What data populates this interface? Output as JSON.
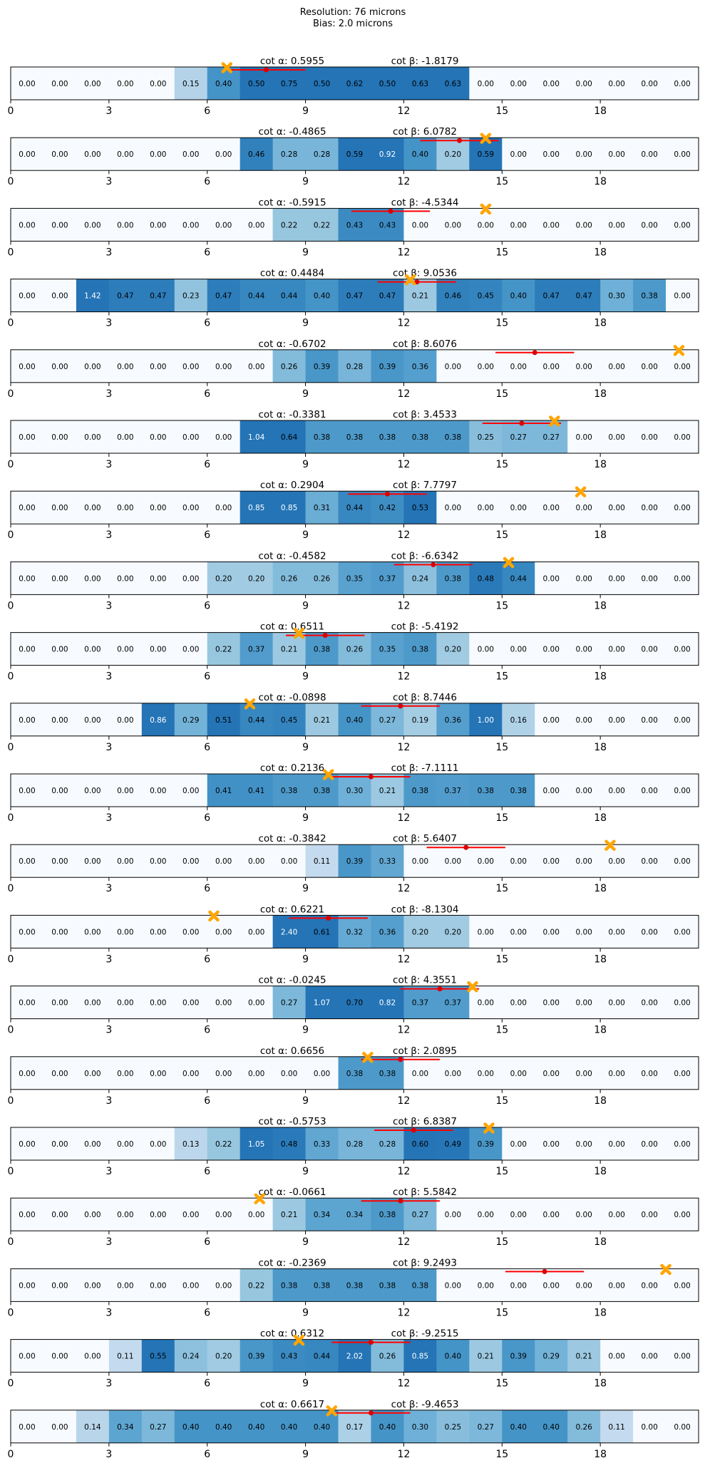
{
  "chart_data": {
    "type": "heatmap",
    "title_lines": [
      "Resolution: 76 microns",
      "Bias: 2.0 microns"
    ],
    "xlim": [
      0,
      21
    ],
    "xticks": [
      0,
      3,
      6,
      9,
      12,
      15,
      18
    ],
    "xtick_labels": [
      "0",
      "3",
      "6",
      "9",
      "12",
      "15",
      "18"
    ],
    "colormap": "Blues",
    "value_range": [
      0,
      1.0
    ],
    "marker_colors": {
      "error_bar": "#ff0000",
      "estimate_point": "#dd0000",
      "true_position": "#ffa500"
    },
    "rows": [
      {
        "cot_alpha": "cot α: 0.5955",
        "cot_beta": "cot β: -1.8179",
        "values": [
          "0.00",
          "0.00",
          "0.00",
          "0.00",
          "0.00",
          "0.15",
          "0.40",
          "0.50",
          "0.75",
          "0.50",
          "0.62",
          "0.50",
          "0.63",
          "0.63",
          "0.00",
          "0.00",
          "0.00",
          "0.00",
          "0.00",
          "0.00",
          "0.00"
        ],
        "estimate": 7.8,
        "error": 1.2,
        "true_pos": 6.6
      },
      {
        "cot_alpha": "cot α: -0.4865",
        "cot_beta": "cot β: 6.0782",
        "values": [
          "0.00",
          "0.00",
          "0.00",
          "0.00",
          "0.00",
          "0.00",
          "0.00",
          "0.46",
          "0.28",
          "0.28",
          "0.59",
          "0.92",
          "0.40",
          "0.20",
          "0.59",
          "0.00",
          "0.00",
          "0.00",
          "0.00",
          "0.00",
          "0.00"
        ],
        "estimate": 13.7,
        "error": 1.2,
        "true_pos": 14.5
      },
      {
        "cot_alpha": "cot α: -0.5915",
        "cot_beta": "cot β: -4.5344",
        "values": [
          "0.00",
          "0.00",
          "0.00",
          "0.00",
          "0.00",
          "0.00",
          "0.00",
          "0.00",
          "0.22",
          "0.22",
          "0.43",
          "0.43",
          "0.00",
          "0.00",
          "0.00",
          "0.00",
          "0.00",
          "0.00",
          "0.00",
          "0.00",
          "0.00"
        ],
        "estimate": 11.6,
        "error": 1.2,
        "true_pos": 14.5
      },
      {
        "cot_alpha": "cot α: 0.4484",
        "cot_beta": "cot β: 9.0536",
        "values": [
          "0.00",
          "0.00",
          "1.42",
          "0.47",
          "0.47",
          "0.23",
          "0.47",
          "0.44",
          "0.44",
          "0.40",
          "0.47",
          "0.47",
          "0.21",
          "0.46",
          "0.45",
          "0.40",
          "0.47",
          "0.47",
          "0.30",
          "0.38",
          "0.00"
        ],
        "estimate": 12.4,
        "error": 1.2,
        "true_pos": 12.2
      },
      {
        "cot_alpha": "cot α: -0.6702",
        "cot_beta": "cot β: 8.6076",
        "values": [
          "0.00",
          "0.00",
          "0.00",
          "0.00",
          "0.00",
          "0.00",
          "0.00",
          "0.00",
          "0.26",
          "0.39",
          "0.28",
          "0.39",
          "0.36",
          "0.00",
          "0.00",
          "0.00",
          "0.00",
          "0.00",
          "0.00",
          "0.00",
          "0.00"
        ],
        "estimate": 16.0,
        "error": 1.2,
        "true_pos": 20.4
      },
      {
        "cot_alpha": "cot α: -0.3381",
        "cot_beta": "cot β: 3.4533",
        "values": [
          "0.00",
          "0.00",
          "0.00",
          "0.00",
          "0.00",
          "0.00",
          "0.00",
          "1.04",
          "0.64",
          "0.38",
          "0.38",
          "0.38",
          "0.38",
          "0.38",
          "0.25",
          "0.27",
          "0.27",
          "0.00",
          "0.00",
          "0.00",
          "0.00"
        ],
        "estimate": 15.6,
        "error": 1.2,
        "true_pos": 16.6
      },
      {
        "cot_alpha": "cot α: 0.2904",
        "cot_beta": "cot β: 7.7797",
        "values": [
          "0.00",
          "0.00",
          "0.00",
          "0.00",
          "0.00",
          "0.00",
          "0.00",
          "0.85",
          "0.85",
          "0.31",
          "0.44",
          "0.42",
          "0.53",
          "0.00",
          "0.00",
          "0.00",
          "0.00",
          "0.00",
          "0.00",
          "0.00",
          "0.00"
        ],
        "estimate": 11.5,
        "error": 1.2,
        "true_pos": 17.4
      },
      {
        "cot_alpha": "cot α: -0.4582",
        "cot_beta": "cot β: -6.6342",
        "values": [
          "0.00",
          "0.00",
          "0.00",
          "0.00",
          "0.00",
          "0.00",
          "0.20",
          "0.20",
          "0.26",
          "0.26",
          "0.35",
          "0.37",
          "0.24",
          "0.38",
          "0.48",
          "0.44",
          "0.00",
          "0.00",
          "0.00",
          "0.00",
          "0.00"
        ],
        "estimate": 12.9,
        "error": 1.2,
        "true_pos": 15.2
      },
      {
        "cot_alpha": "cot α: 0.6511",
        "cot_beta": "cot β: -5.4192",
        "values": [
          "0.00",
          "0.00",
          "0.00",
          "0.00",
          "0.00",
          "0.00",
          "0.22",
          "0.37",
          "0.21",
          "0.38",
          "0.26",
          "0.35",
          "0.38",
          "0.20",
          "0.00",
          "0.00",
          "0.00",
          "0.00",
          "0.00",
          "0.00",
          "0.00"
        ],
        "estimate": 9.6,
        "error": 1.2,
        "true_pos": 8.8
      },
      {
        "cot_alpha": "cot α: -0.0898",
        "cot_beta": "cot β: 8.7446",
        "values": [
          "0.00",
          "0.00",
          "0.00",
          "0.00",
          "0.86",
          "0.29",
          "0.51",
          "0.44",
          "0.45",
          "0.21",
          "0.40",
          "0.27",
          "0.19",
          "0.36",
          "1.00",
          "0.16",
          "0.00",
          "0.00",
          "0.00",
          "0.00",
          "0.00"
        ],
        "estimate": 11.9,
        "error": 1.2,
        "true_pos": 7.3
      },
      {
        "cot_alpha": "cot α: 0.2136",
        "cot_beta": "cot β: -7.1111",
        "values": [
          "0.00",
          "0.00",
          "0.00",
          "0.00",
          "0.00",
          "0.00",
          "0.41",
          "0.41",
          "0.38",
          "0.38",
          "0.30",
          "0.21",
          "0.38",
          "0.37",
          "0.38",
          "0.38",
          "0.00",
          "0.00",
          "0.00",
          "0.00",
          "0.00"
        ],
        "estimate": 11.0,
        "error": 1.2,
        "true_pos": 9.7
      },
      {
        "cot_alpha": "cot α: -0.3842",
        "cot_beta": "cot β: 5.6407",
        "values": [
          "0.00",
          "0.00",
          "0.00",
          "0.00",
          "0.00",
          "0.00",
          "0.00",
          "0.00",
          "0.00",
          "0.11",
          "0.39",
          "0.33",
          "0.00",
          "0.00",
          "0.00",
          "0.00",
          "0.00",
          "0.00",
          "0.00",
          "0.00",
          "0.00"
        ],
        "estimate": 13.9,
        "error": 1.2,
        "true_pos": 18.3
      },
      {
        "cot_alpha": "cot α: 0.6221",
        "cot_beta": "cot β: -8.1304",
        "values": [
          "0.00",
          "0.00",
          "0.00",
          "0.00",
          "0.00",
          "0.00",
          "0.00",
          "0.00",
          "2.40",
          "0.61",
          "0.32",
          "0.36",
          "0.20",
          "0.20",
          "0.00",
          "0.00",
          "0.00",
          "0.00",
          "0.00",
          "0.00",
          "0.00"
        ],
        "estimate": 9.7,
        "error": 1.2,
        "true_pos": 6.2
      },
      {
        "cot_alpha": "cot α: -0.0245",
        "cot_beta": "cot β: 4.3551",
        "values": [
          "0.00",
          "0.00",
          "0.00",
          "0.00",
          "0.00",
          "0.00",
          "0.00",
          "0.00",
          "0.27",
          "1.07",
          "0.70",
          "0.82",
          "0.37",
          "0.37",
          "0.00",
          "0.00",
          "0.00",
          "0.00",
          "0.00",
          "0.00",
          "0.00"
        ],
        "estimate": 13.1,
        "error": 1.2,
        "true_pos": 14.1
      },
      {
        "cot_alpha": "cot α: 0.6656",
        "cot_beta": "cot β: 2.0895",
        "values": [
          "0.00",
          "0.00",
          "0.00",
          "0.00",
          "0.00",
          "0.00",
          "0.00",
          "0.00",
          "0.00",
          "0.00",
          "0.38",
          "0.38",
          "0.00",
          "0.00",
          "0.00",
          "0.00",
          "0.00",
          "0.00",
          "0.00",
          "0.00",
          "0.00"
        ],
        "estimate": 11.9,
        "error": 1.2,
        "true_pos": 10.9
      },
      {
        "cot_alpha": "cot α: -0.5753",
        "cot_beta": "cot β: 6.8387",
        "values": [
          "0.00",
          "0.00",
          "0.00",
          "0.00",
          "0.00",
          "0.13",
          "0.22",
          "1.05",
          "0.48",
          "0.33",
          "0.28",
          "0.28",
          "0.60",
          "0.49",
          "0.39",
          "0.00",
          "0.00",
          "0.00",
          "0.00",
          "0.00",
          "0.00"
        ],
        "estimate": 12.3,
        "error": 1.2,
        "true_pos": 14.6
      },
      {
        "cot_alpha": "cot α: -0.0661",
        "cot_beta": "cot β: 5.5842",
        "values": [
          "0.00",
          "0.00",
          "0.00",
          "0.00",
          "0.00",
          "0.00",
          "0.00",
          "0.00",
          "0.21",
          "0.34",
          "0.34",
          "0.38",
          "0.27",
          "0.00",
          "0.00",
          "0.00",
          "0.00",
          "0.00",
          "0.00",
          "0.00",
          "0.00"
        ],
        "estimate": 11.9,
        "error": 1.2,
        "true_pos": 7.6
      },
      {
        "cot_alpha": "cot α: -0.2369",
        "cot_beta": "cot β: 9.2493",
        "values": [
          "0.00",
          "0.00",
          "0.00",
          "0.00",
          "0.00",
          "0.00",
          "0.00",
          "0.22",
          "0.38",
          "0.38",
          "0.38",
          "0.38",
          "0.38",
          "0.00",
          "0.00",
          "0.00",
          "0.00",
          "0.00",
          "0.00",
          "0.00",
          "0.00"
        ],
        "estimate": 16.3,
        "error": 1.2,
        "true_pos": 20.0
      },
      {
        "cot_alpha": "cot α: 0.6312",
        "cot_beta": "cot β: -9.2515",
        "values": [
          "0.00",
          "0.00",
          "0.00",
          "0.11",
          "0.55",
          "0.24",
          "0.20",
          "0.39",
          "0.43",
          "0.44",
          "2.02",
          "0.26",
          "0.85",
          "0.40",
          "0.21",
          "0.39",
          "0.29",
          "0.21",
          "0.00",
          "0.00",
          "0.00"
        ],
        "estimate": 11.0,
        "error": 1.2,
        "true_pos": 8.8
      },
      {
        "cot_alpha": "cot α: 0.6617",
        "cot_beta": "cot β: -9.4653",
        "values": [
          "0.00",
          "0.00",
          "0.14",
          "0.34",
          "0.27",
          "0.40",
          "0.40",
          "0.40",
          "0.40",
          "0.40",
          "0.17",
          "0.40",
          "0.30",
          "0.25",
          "0.27",
          "0.40",
          "0.40",
          "0.26",
          "0.11",
          "0.00",
          "0.00"
        ],
        "estimate": 11.0,
        "error": 1.2,
        "true_pos": 9.8
      }
    ]
  }
}
